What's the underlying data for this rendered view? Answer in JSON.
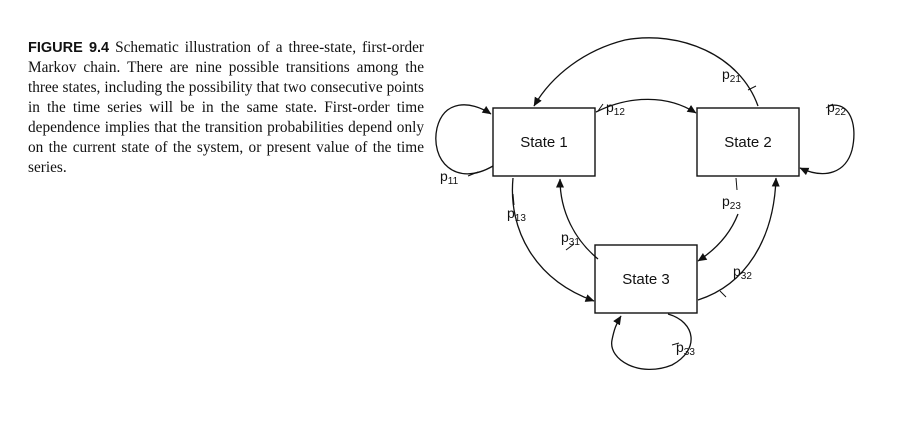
{
  "caption": {
    "label": "FIGURE 9.4",
    "text": "Schematic illustration of a three-state, first-order Markov chain. There are nine possible transitions among the three states, including the possibility that two consecutive points in the time series will be in the same state. First-order time dependence implies that the transition probabilities depend only on the current state of the system, or present value of the time series."
  },
  "states": {
    "s1": "State 1",
    "s2": "State 2",
    "s3": "State 3"
  },
  "transitions": {
    "p11": {
      "base": "p",
      "sub": "11"
    },
    "p12": {
      "base": "p",
      "sub": "12"
    },
    "p13": {
      "base": "p",
      "sub": "13"
    },
    "p21": {
      "base": "p",
      "sub": "21"
    },
    "p22": {
      "base": "p",
      "sub": "22"
    },
    "p23": {
      "base": "p",
      "sub": "23"
    },
    "p31": {
      "base": "p",
      "sub": "31"
    },
    "p32": {
      "base": "p",
      "sub": "32"
    },
    "p33": {
      "base": "p",
      "sub": "33"
    }
  }
}
